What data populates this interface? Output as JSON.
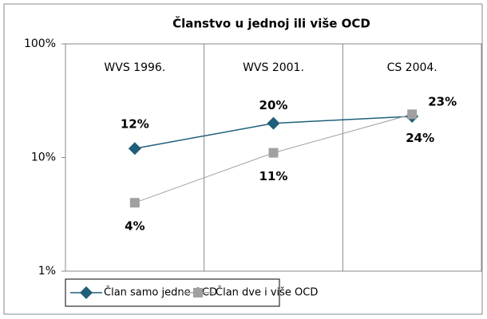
{
  "chart_data": {
    "type": "line",
    "title": "Članstvo u jednoj ili više OCD",
    "categories": [
      "WVS 1996.",
      "WVS 2001.",
      "CS 2004."
    ],
    "series": [
      {
        "name": "Član samo jedne OCD",
        "color": "#1f5f7a",
        "marker": "diamond",
        "values": [
          12,
          20,
          23
        ],
        "value_labels": [
          "12%",
          "20%",
          "23%"
        ]
      },
      {
        "name": "Član dve i više OCD",
        "color": "#a0a0a0",
        "marker": "square",
        "values": [
          4,
          11,
          24
        ],
        "value_labels": [
          "4%",
          "11%",
          "24%"
        ]
      }
    ],
    "log_scale": true,
    "ylim": [
      1,
      100
    ],
    "yticks": [
      {
        "value": 1,
        "label": "1%"
      },
      {
        "value": 10,
        "label": "10%"
      },
      {
        "value": 100,
        "label": "100%"
      }
    ],
    "legend": "bottom"
  }
}
